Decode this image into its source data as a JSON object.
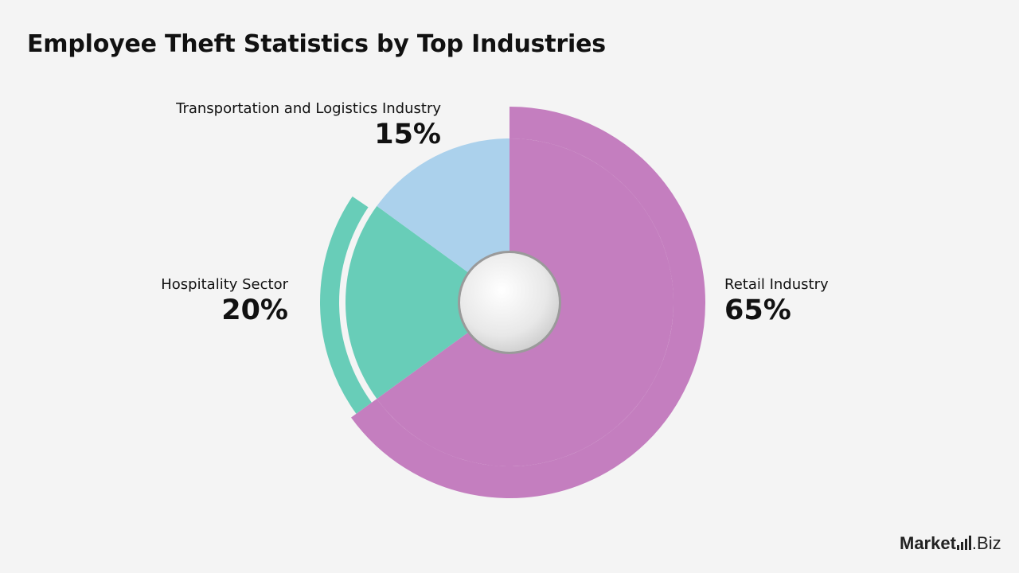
{
  "title": "Employee Theft Statistics by Top Industries",
  "chart_data": {
    "type": "pie",
    "title": "Employee Theft Statistics by Top Industries",
    "slices": [
      {
        "label": "Retail Industry",
        "value": 65,
        "display": "65%",
        "color": "#c47ebf"
      },
      {
        "label": "Hospitality Sector",
        "value": 20,
        "display": "20%",
        "color": "#68cdb8"
      },
      {
        "label": "Transportation and Logistics Industry",
        "value": 15,
        "display": "15%",
        "color": "#abd1ec"
      }
    ],
    "center_hole": true,
    "legend": "none"
  },
  "logo": {
    "brand_bold": "Market",
    "brand_rest": ".Biz"
  }
}
